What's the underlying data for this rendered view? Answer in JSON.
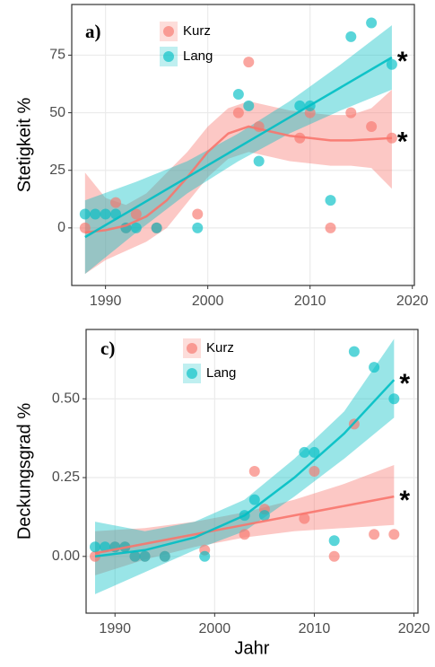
{
  "chart_data": [
    {
      "type": "scatter",
      "panel_label": "a)",
      "ylabel": "Stetigkeit %",
      "xlim": [
        1986.7,
        2020.2
      ],
      "xticks": [
        1990,
        2000,
        2010,
        2020
      ],
      "ylim": [
        -25,
        97
      ],
      "yticks": [
        0,
        25,
        50,
        75
      ],
      "grid": true,
      "series": [
        {
          "name": "Kurz",
          "color": "#F8766D",
          "annotation": "*",
          "x": [
            1988,
            1991,
            1992,
            1993,
            1995,
            1999,
            2003,
            2004,
            2005,
            2009,
            2010,
            2012,
            2014,
            2016,
            2018
          ],
          "values": [
            0,
            11,
            0,
            6,
            0,
            6,
            50,
            72,
            44,
            39,
            50,
            0,
            50,
            44,
            39
          ],
          "fit": {
            "x": [
              1988,
              1990,
              1992,
              1994,
              1996,
              1998,
              2000,
              2002,
              2004,
              2006,
              2008,
              2010,
              2012,
              2014,
              2016,
              2018
            ],
            "values": [
              -2,
              -1,
              1,
              5,
              12,
              22,
              33,
              41,
              44,
              42,
              40,
              39,
              38,
              38,
              38.5,
              39
            ],
            "lower": [
              -20,
              -14,
              -10,
              -6,
              0,
              11,
              22,
              30,
              33,
              31,
              29,
              28,
              27,
              27,
              26,
              17
            ],
            "upper": [
              24,
              13,
              10,
              15,
              24,
              33,
              44,
              52,
              55,
              53,
              51,
              50,
              49,
              49,
              52,
              60
            ]
          }
        },
        {
          "name": "Lang",
          "color": "#00BFC4",
          "annotation": "*",
          "x": [
            1988,
            1989,
            1990,
            1991,
            1992,
            1993,
            1995,
            1999,
            2003,
            2004,
            2005,
            2009,
            2010,
            2012,
            2014,
            2016,
            2018
          ],
          "values": [
            6,
            6,
            6,
            6,
            0,
            0,
            0,
            0,
            58,
            53,
            29,
            53,
            53,
            12,
            83,
            89,
            71
          ],
          "fit": {
            "x": [
              1988,
              1993,
              1998,
              2003,
              2008,
              2013,
              2018
            ],
            "values": [
              -4,
              9,
              22,
              35,
              48,
              61,
              74
            ],
            "lower": [
              -20,
              -2,
              15,
              29,
              41,
              51,
              60
            ],
            "upper": [
              12,
              20,
              29,
              41,
              55,
              71,
              88
            ]
          }
        }
      ]
    },
    {
      "type": "scatter",
      "panel_label": "c)",
      "ylabel": "Deckungsgrad %",
      "xlabel": "Jahr",
      "xlim": [
        1987.1,
        2020.4
      ],
      "xticks": [
        1990,
        2000,
        2010,
        2020
      ],
      "ylim": [
        -0.18,
        0.72
      ],
      "yticks": [
        {
          "value": 0,
          "label": "0.00"
        },
        {
          "value": 0.25,
          "label": "0.25"
        },
        {
          "value": 0.5,
          "label": "0.50"
        }
      ],
      "grid": true,
      "series": [
        {
          "name": "Kurz",
          "color": "#F8766D",
          "annotation": "*",
          "x": [
            1988,
            1990,
            1991,
            1992,
            1993,
            1995,
            1999,
            2003,
            2004,
            2005,
            2009,
            2010,
            2012,
            2014,
            2016,
            2018
          ],
          "values": [
            0,
            0.03,
            0.03,
            0,
            0,
            0,
            0.02,
            0.07,
            0.27,
            0.15,
            0.12,
            0.27,
            0,
            0.42,
            0.07,
            0.07
          ],
          "fit": {
            "x": [
              1988,
              1993,
              1998,
              2003,
              2008,
              2013,
              2018
            ],
            "values": [
              0.01,
              0.04,
              0.07,
              0.1,
              0.13,
              0.16,
              0.19
            ],
            "lower": [
              -0.06,
              -0.01,
              0.03,
              0.06,
              0.08,
              0.09,
              0.1
            ],
            "upper": [
              0.08,
              0.09,
              0.11,
              0.14,
              0.18,
              0.23,
              0.29
            ]
          }
        },
        {
          "name": "Lang",
          "color": "#00BFC4",
          "annotation": "*",
          "x": [
            1988,
            1989,
            1990,
            1991,
            1992,
            1993,
            1995,
            1999,
            2003,
            2004,
            2005,
            2009,
            2010,
            2012,
            2014,
            2016,
            2018
          ],
          "values": [
            0.03,
            0.03,
            0.03,
            0.03,
            0,
            0,
            0,
            0,
            0.13,
            0.18,
            0.13,
            0.33,
            0.33,
            0.05,
            0.65,
            0.6,
            0.5
          ],
          "fit": {
            "x": [
              1988,
              1993,
              1998,
              2003,
              2008,
              2013,
              2018
            ],
            "values": [
              0,
              0.02,
              0.06,
              0.13,
              0.25,
              0.39,
              0.56
            ],
            "lower": [
              -0.12,
              -0.05,
              0.02,
              0.08,
              0.19,
              0.31,
              0.44
            ],
            "upper": [
              0.11,
              0.08,
              0.11,
              0.18,
              0.31,
              0.46,
              0.69
            ]
          }
        }
      ]
    }
  ]
}
